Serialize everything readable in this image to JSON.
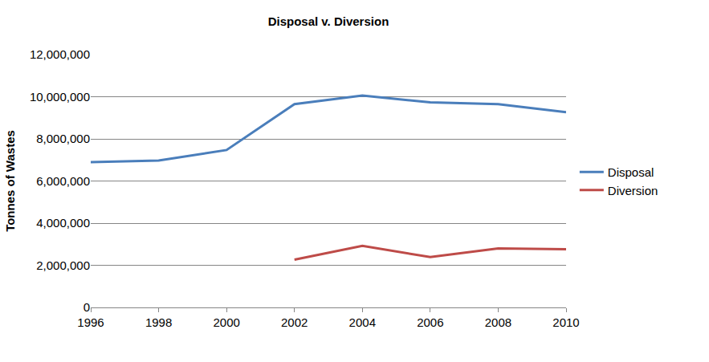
{
  "chart_data": {
    "type": "line",
    "title": "Disposal v. Diversion",
    "y_label": "Tonnes of Wastes",
    "categories": [
      "1996",
      "1998",
      "2000",
      "2002",
      "2004",
      "2006",
      "2008",
      "2010"
    ],
    "series": [
      {
        "name": "Disposal",
        "color": "#4a7ebb",
        "values": [
          6900000,
          6970000,
          7470000,
          9650000,
          10060000,
          9730000,
          9650000,
          9270000
        ]
      },
      {
        "name": "Diversion",
        "color": "#be4b48",
        "values": [
          null,
          null,
          null,
          2270000,
          2920000,
          2390000,
          2800000,
          2760000
        ]
      }
    ],
    "ylim": [
      0,
      12000000
    ],
    "yticks": [
      0,
      {
        "value": 2000000,
        "label": "2,000,000"
      },
      {
        "value": 4000000,
        "label": "4,000,000"
      },
      {
        "value": 6000000,
        "label": "6,000,000"
      },
      {
        "value": 8000000,
        "label": "8,000,000"
      },
      {
        "value": 10000000,
        "label": "10,000,000"
      },
      {
        "value": 12000000,
        "label": "12,000,000"
      }
    ],
    "grid": true,
    "legend": "right"
  }
}
